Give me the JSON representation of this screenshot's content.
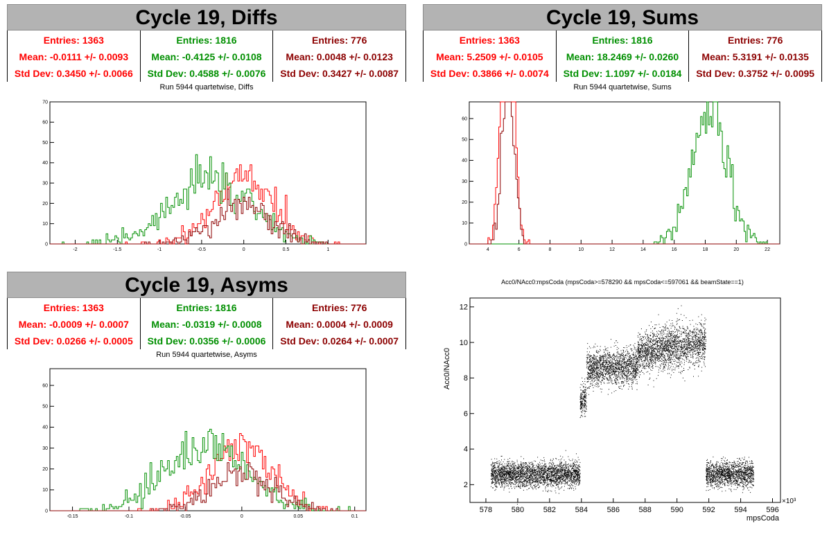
{
  "colors": {
    "s1": "#ff0000",
    "s2": "#008f00",
    "s3": "#8c0000"
  },
  "diffs": {
    "title": "Cycle 19, Diffs",
    "subtitle": "Run 5944 quartetwise, Diffs",
    "stats": [
      {
        "entries": "Entries: 1363",
        "mean": "Mean: -0.0111 +/- 0.0093",
        "std": "Std Dev: 0.3450 +/- 0.0066"
      },
      {
        "entries": "Entries: 1816",
        "mean": "Mean: -0.4125 +/- 0.0108",
        "std": "Std Dev: 0.4588 +/- 0.0076"
      },
      {
        "entries": "Entries: 776",
        "mean": "Mean: 0.0048 +/- 0.0123",
        "std": "Std Dev: 0.3427 +/- 0.0087"
      }
    ]
  },
  "sums": {
    "title": "Cycle 19, Sums",
    "subtitle": "Run 5944 quartetwise, Sums",
    "stats": [
      {
        "entries": "Entries: 1363",
        "mean": "Mean: 5.2509 +/- 0.0105",
        "std": "Std Dev: 0.3866 +/- 0.0074"
      },
      {
        "entries": "Entries: 1816",
        "mean": "Mean: 18.2469 +/- 0.0260",
        "std": "Std Dev: 1.1097 +/- 0.0184"
      },
      {
        "entries": "Entries: 776",
        "mean": "Mean: 5.3191 +/- 0.0135",
        "std": "Std Dev: 0.3752 +/- 0.0095"
      }
    ]
  },
  "asyms": {
    "title": "Cycle 19, Asyms",
    "subtitle": "Run 5944 quartetwise, Asyms",
    "stats": [
      {
        "entries": "Entries: 1363",
        "mean": "Mean: -0.0009 +/- 0.0007",
        "std": "Std Dev: 0.0266 +/- 0.0005"
      },
      {
        "entries": "Entries: 1816",
        "mean": "Mean: -0.0319 +/- 0.0008",
        "std": "Std Dev: 0.0356 +/- 0.0006"
      },
      {
        "entries": "Entries: 776",
        "mean": "Mean: 0.0004 +/- 0.0009",
        "std": "Std Dev: 0.0264 +/- 0.0007"
      }
    ]
  },
  "scatter": {
    "title": "Acc0/NAcc0:mpsCoda (mpsCoda>=578290 && mpsCoda<=597061 && beamState==1)",
    "ylabel": "Acc0/NAcc0",
    "xlabel": "mpsCoda",
    "exponent": "×10³"
  },
  "chart_data": [
    {
      "type": "histogram",
      "name": "diffs",
      "xlim": [
        -2.3,
        1.45
      ],
      "ylim": [
        0,
        70
      ],
      "xticks": [
        -2,
        -1.5,
        -1,
        -0.5,
        0,
        0.5,
        1
      ],
      "yticks": [
        0,
        10,
        20,
        30,
        40,
        50,
        60,
        70
      ],
      "series": [
        {
          "color": "s1",
          "entries": 1363,
          "mean": -0.0111,
          "std": 0.345
        },
        {
          "color": "s2",
          "entries": 1816,
          "mean": -0.4125,
          "std": 0.4588
        },
        {
          "color": "s3",
          "entries": 776,
          "mean": 0.0048,
          "std": 0.3427
        }
      ]
    },
    {
      "type": "histogram",
      "name": "sums",
      "xlim": [
        2.8,
        22.8
      ],
      "ylim": [
        0,
        68
      ],
      "xticks": [
        4,
        6,
        8,
        10,
        12,
        14,
        16,
        18,
        20,
        22
      ],
      "yticks": [
        0,
        10,
        20,
        30,
        40,
        50,
        60
      ],
      "series": [
        {
          "color": "s1",
          "entries": 1363,
          "mean": 5.2509,
          "std": 0.3866
        },
        {
          "color": "s2",
          "entries": 1816,
          "mean": 18.2469,
          "std": 1.1097
        },
        {
          "color": "s3",
          "entries": 776,
          "mean": 5.3191,
          "std": 0.3752
        }
      ]
    },
    {
      "type": "histogram",
      "name": "asyms",
      "xlim": [
        -0.17,
        0.11
      ],
      "ylim": [
        0,
        68
      ],
      "xticks": [
        -0.15,
        -0.1,
        -0.05,
        0,
        0.05,
        0.1
      ],
      "yticks": [
        0,
        10,
        20,
        30,
        40,
        50,
        60
      ],
      "series": [
        {
          "color": "s1",
          "entries": 1363,
          "mean": -0.0009,
          "std": 0.0266
        },
        {
          "color": "s2",
          "entries": 1816,
          "mean": -0.0319,
          "std": 0.0356
        },
        {
          "color": "s3",
          "entries": 776,
          "mean": 0.0004,
          "std": 0.0264
        }
      ]
    },
    {
      "type": "scatter",
      "name": "acc0",
      "xlim": [
        577,
        596.5
      ],
      "ylim": [
        1,
        12.5
      ],
      "xticks": [
        578,
        580,
        582,
        584,
        586,
        588,
        590,
        592,
        594,
        596
      ],
      "yticks": [
        2,
        4,
        6,
        8,
        10,
        12
      ],
      "segments": [
        {
          "x": [
            578.3,
            583.9
          ],
          "y": 2.6,
          "spread": 0.35
        },
        {
          "x": [
            583.9,
            584.3
          ],
          "y": 6.8,
          "spread": 0.45
        },
        {
          "x": [
            584.3,
            587.5
          ],
          "y": 8.6,
          "spread": 0.5
        },
        {
          "x": [
            587.5,
            591.8
          ],
          "y": 9.4,
          "spread": 0.6
        },
        {
          "x": [
            591.8,
            594.8
          ],
          "y": 2.6,
          "spread": 0.35
        }
      ]
    }
  ]
}
